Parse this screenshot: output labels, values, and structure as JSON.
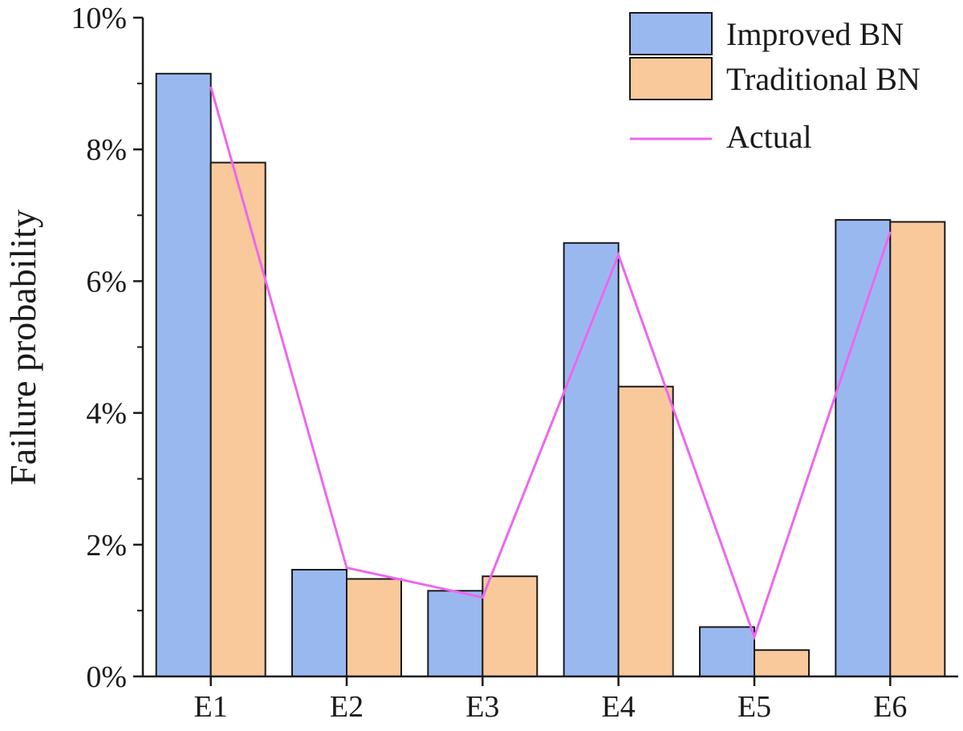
{
  "chart_data": {
    "type": "bar",
    "categories": [
      "E1",
      "E2",
      "E3",
      "E4",
      "E5",
      "E6"
    ],
    "series": [
      {
        "name": "Improved BN",
        "type": "bar",
        "color": "#9ab8f0",
        "values": [
          9.15,
          1.62,
          1.3,
          6.58,
          0.75,
          6.93
        ]
      },
      {
        "name": "Traditional BN",
        "type": "bar",
        "color": "#f9c99c",
        "values": [
          7.8,
          1.48,
          1.52,
          4.4,
          0.4,
          6.9
        ]
      },
      {
        "name": "Actual",
        "type": "line",
        "color": "#ee66ee",
        "values": [
          8.95,
          1.65,
          1.2,
          6.4,
          0.6,
          6.75
        ]
      }
    ],
    "title": "",
    "xlabel": "",
    "ylabel": "Failure probability",
    "ylim": [
      0,
      10
    ],
    "yticks": [
      0,
      2,
      4,
      6,
      8,
      10
    ],
    "ytick_labels": [
      "0%",
      "2%",
      "4%",
      "6%",
      "8%",
      "10%"
    ],
    "grid": false,
    "legend_position": "top-right"
  }
}
